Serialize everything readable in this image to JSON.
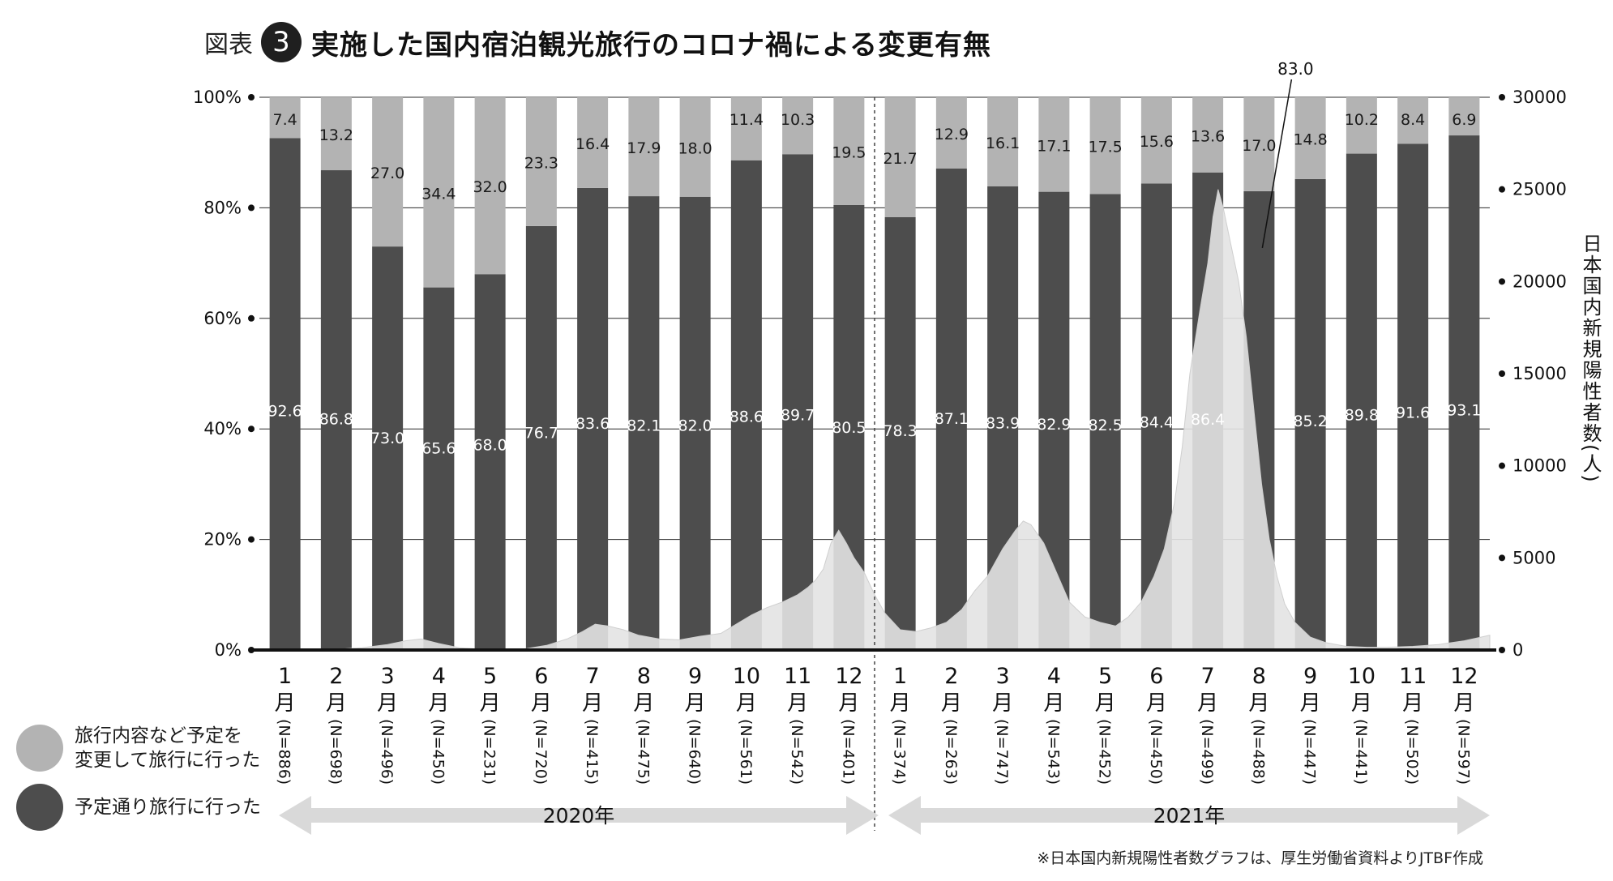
{
  "title": {
    "figure_label": "図表",
    "figure_number": "3",
    "text": "実施した国内宿泊観光旅行のコロナ禍による変更有無"
  },
  "legend": {
    "changed": "旅行内容など予定を 変更して旅行に行った",
    "changed_line1": "旅行内容など予定を",
    "changed_line2": "変更して旅行に行った",
    "as_planned": "予定通り旅行に行った"
  },
  "years": [
    "2020年",
    "2021年"
  ],
  "footnote": "※日本国内新規陽性者数グラフは、厚生労働省資料よりJTBF作成",
  "colors": {
    "as_planned": "#4d4d4d",
    "changed": "#b3b3b3",
    "cases": "#e3e3e3",
    "peak_cases": "#d5d5d5",
    "axis": "#111111",
    "arrow": "#d9d9d9"
  },
  "chart_data": {
    "type": "bar",
    "stacked": true,
    "categories": [
      "1月(N=886)",
      "2月(N=698)",
      "3月(N=496)",
      "4月(N=450)",
      "5月(N=231)",
      "6月(N=720)",
      "7月(N=415)",
      "8月(N=475)",
      "9月(N=640)",
      "10月(N=561)",
      "11月(N=542)",
      "12月(N=401)",
      "1月(N=374)",
      "2月(N=263)",
      "3月(N=747)",
      "4月(N=543)",
      "5月(N=452)",
      "6月(N=450)",
      "7月(N=499)",
      "8月(N=488)",
      "9月(N=447)",
      "10月(N=441)",
      "11月(N=502)",
      "12月(N=597)"
    ],
    "month_labels": [
      "1",
      "2",
      "3",
      "4",
      "5",
      "6",
      "7",
      "8",
      "9",
      "10",
      "11",
      "12",
      "1",
      "2",
      "3",
      "4",
      "5",
      "6",
      "7",
      "8",
      "9",
      "10",
      "11",
      "12"
    ],
    "n_labels": [
      "(N=886)",
      "(N=698)",
      "(N=496)",
      "(N=450)",
      "(N=231)",
      "(N=720)",
      "(N=415)",
      "(N=475)",
      "(N=640)",
      "(N=561)",
      "(N=542)",
      "(N=401)",
      "(N=374)",
      "(N=263)",
      "(N=747)",
      "(N=543)",
      "(N=452)",
      "(N=450)",
      "(N=499)",
      "(N=488)",
      "(N=447)",
      "(N=441)",
      "(N=502)",
      "(N=597)"
    ],
    "month_suffix": "月",
    "year_groups": [
      {
        "label": "2020年",
        "months": 12
      },
      {
        "label": "2021年",
        "months": 12
      }
    ],
    "series": [
      {
        "name": "予定通り旅行に行った",
        "values": [
          92.6,
          86.8,
          73.0,
          65.6,
          68.0,
          76.7,
          83.6,
          82.1,
          82.0,
          88.6,
          89.7,
          80.5,
          78.3,
          87.1,
          83.9,
          82.9,
          82.5,
          84.4,
          86.4,
          83.0,
          85.2,
          89.8,
          91.6,
          93.1
        ]
      },
      {
        "name": "旅行内容など予定を変更して旅行に行った",
        "values": [
          7.4,
          13.2,
          27.0,
          34.4,
          32.0,
          23.3,
          16.4,
          17.9,
          18.0,
          11.4,
          10.3,
          19.5,
          21.7,
          12.9,
          16.1,
          17.1,
          17.5,
          15.6,
          13.6,
          17.0,
          14.8,
          10.2,
          8.4,
          6.9
        ]
      }
    ],
    "value_labels_bottom": [
      "92.6",
      "86.8",
      "73.0",
      "65.6",
      "68.0",
      "76.7",
      "83.6",
      "82.1",
      "82.0",
      "88.6",
      "89.7",
      "80.5",
      "78.3",
      "87.1",
      "83.9",
      "82.9",
      "82.5",
      "84.4",
      "86.4",
      "",
      "85.2",
      "89.8",
      "91.6",
      "93.1"
    ],
    "value_labels_top": [
      "7.4",
      "13.2",
      "27.0",
      "34.4",
      "32.0",
      "23.3",
      "16.4",
      "17.9",
      "18.0",
      "11.4",
      "10.3",
      "19.5",
      "21.7",
      "12.9",
      "16.1",
      "17.1",
      "17.5",
      "15.6",
      "13.6",
      "17.0",
      "14.8",
      "10.2",
      "8.4",
      "6.9"
    ],
    "callout": {
      "category_index": 19,
      "label": "83.0"
    },
    "y_left": {
      "ticks": [
        "0%",
        "20%",
        "40%",
        "60%",
        "80%",
        "100%"
      ],
      "range": [
        0,
        100
      ]
    },
    "y_right": {
      "label": "日本国内新規陽性者数(人)",
      "ticks": [
        "0",
        "5000",
        "10000",
        "15000",
        "20000",
        "25000",
        "30000"
      ],
      "range": [
        0,
        30000
      ]
    },
    "cases_series": {
      "name": "日本国内新規陽性者数",
      "type": "area",
      "months": [
        "2020-01",
        "2020-02",
        "2020-03",
        "2020-04",
        "2020-05",
        "2020-06",
        "2020-07",
        "2020-08",
        "2020-09",
        "2020-10",
        "2020-11",
        "2020-12",
        "2021-01",
        "2021-02",
        "2021-03",
        "2021-04",
        "2021-05",
        "2021-06",
        "2021-07",
        "2021-08",
        "2021-09",
        "2021-10",
        "2021-11",
        "2021-12"
      ],
      "points": [
        [
          0.0,
          0
        ],
        [
          0.5,
          10
        ],
        [
          1.0,
          15
        ],
        [
          1.5,
          40
        ],
        [
          2.0,
          120
        ],
        [
          2.5,
          300
        ],
        [
          2.85,
          500
        ],
        [
          3.15,
          600
        ],
        [
          3.5,
          350
        ],
        [
          3.9,
          120
        ],
        [
          4.3,
          50
        ],
        [
          4.8,
          40
        ],
        [
          5.2,
          70
        ],
        [
          5.6,
          250
        ],
        [
          6.0,
          600
        ],
        [
          6.3,
          1000
        ],
        [
          6.55,
          1400
        ],
        [
          6.8,
          1300
        ],
        [
          7.1,
          1100
        ],
        [
          7.4,
          800
        ],
        [
          7.8,
          600
        ],
        [
          8.2,
          550
        ],
        [
          8.6,
          750
        ],
        [
          9.0,
          900
        ],
        [
          9.3,
          1400
        ],
        [
          9.6,
          1900
        ],
        [
          9.9,
          2300
        ],
        [
          10.2,
          2600
        ],
        [
          10.5,
          3000
        ],
        [
          10.7,
          3400
        ],
        [
          10.85,
          3800
        ],
        [
          11.0,
          4400
        ],
        [
          11.15,
          5800
        ],
        [
          11.3,
          6500
        ],
        [
          11.45,
          5800
        ],
        [
          11.6,
          5000
        ],
        [
          11.8,
          4200
        ],
        [
          12.0,
          3000
        ],
        [
          12.2,
          2000
        ],
        [
          12.5,
          1100
        ],
        [
          12.8,
          1000
        ],
        [
          13.1,
          1200
        ],
        [
          13.4,
          1500
        ],
        [
          13.7,
          2200
        ],
        [
          13.95,
          3200
        ],
        [
          14.2,
          4000
        ],
        [
          14.5,
          5500
        ],
        [
          14.75,
          6500
        ],
        [
          14.9,
          7000
        ],
        [
          15.05,
          6800
        ],
        [
          15.3,
          5800
        ],
        [
          15.55,
          4200
        ],
        [
          15.8,
          2600
        ],
        [
          16.1,
          1800
        ],
        [
          16.4,
          1500
        ],
        [
          16.7,
          1300
        ],
        [
          16.95,
          1800
        ],
        [
          17.2,
          2600
        ],
        [
          17.45,
          4000
        ],
        [
          17.65,
          5500
        ],
        [
          17.85,
          8000
        ],
        [
          18.0,
          11000
        ],
        [
          18.15,
          15000
        ],
        [
          18.35,
          18500
        ],
        [
          18.5,
          21000
        ],
        [
          18.6,
          23500
        ],
        [
          18.7,
          25000
        ],
        [
          18.8,
          24000
        ],
        [
          18.95,
          22000
        ],
        [
          19.1,
          20000
        ],
        [
          19.25,
          17000
        ],
        [
          19.4,
          13000
        ],
        [
          19.55,
          9000
        ],
        [
          19.7,
          6000
        ],
        [
          19.85,
          4000
        ],
        [
          20.0,
          2500
        ],
        [
          20.2,
          1500
        ],
        [
          20.5,
          700
        ],
        [
          20.8,
          400
        ],
        [
          21.2,
          200
        ],
        [
          21.6,
          150
        ],
        [
          22.0,
          150
        ],
        [
          22.5,
          200
        ],
        [
          23.0,
          300
        ],
        [
          23.5,
          500
        ],
        [
          24.0,
          800
        ]
      ]
    }
  }
}
